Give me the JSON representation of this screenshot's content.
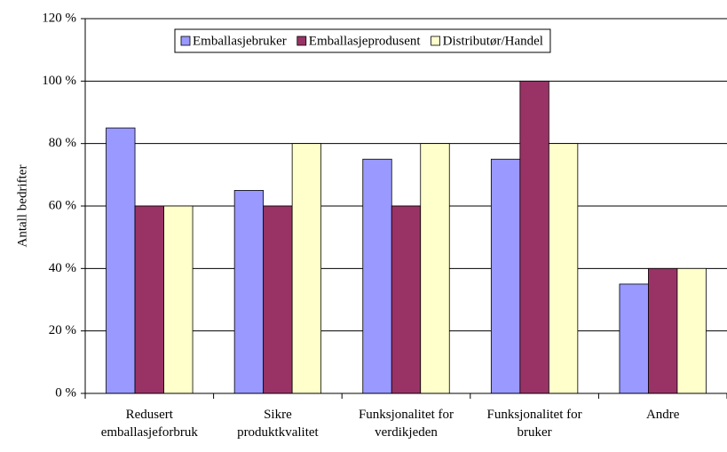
{
  "chart_data": {
    "type": "bar",
    "y_label": "Antall bedrifter",
    "categories": [
      "Redusert emballasjeforbruk",
      "Sikre produktkvalitet",
      "Funksjonalitet for verdikjeden",
      "Funksjonalitet for bruker",
      "Andre"
    ],
    "series": [
      {
        "name": "Emballasjebruker",
        "color": "#9999ff",
        "values": [
          85,
          65,
          75,
          75,
          35
        ]
      },
      {
        "name": "Emballasjeprodusent",
        "color": "#993366",
        "values": [
          60,
          60,
          60,
          100,
          40
        ]
      },
      {
        "name": "Distributør/Handel",
        "color": "#ffffcc",
        "values": [
          60,
          80,
          80,
          80,
          40
        ]
      }
    ],
    "ylim": [
      0,
      120
    ],
    "yticks": [
      {
        "value": 0,
        "label": "0 %"
      },
      {
        "value": 20,
        "label": "20 %"
      },
      {
        "value": 40,
        "label": "40 %"
      },
      {
        "value": 60,
        "label": "60 %"
      },
      {
        "value": 80,
        "label": "80 %"
      },
      {
        "value": 100,
        "label": "100 %"
      },
      {
        "value": 120,
        "label": "120 %"
      }
    ],
    "grid": true,
    "legend": "top"
  }
}
